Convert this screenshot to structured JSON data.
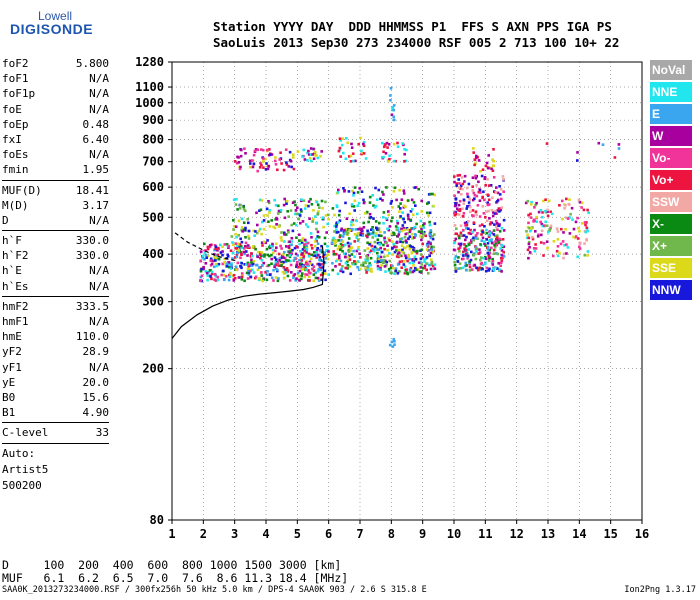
{
  "logo": {
    "line1": "Lowell",
    "line2": "DIGISONDE"
  },
  "header": {
    "line1": "Station YYYY DAY  DDD HHMMSS P1  FFS S AXN PPS IGA PS",
    "line2": "SaoLuis 2013 Sep30 273 234000 RSF 005 2 713 100 10+ 22"
  },
  "params": [
    {
      "name": "foF2",
      "value": "5.800"
    },
    {
      "name": "foF1",
      "value": "N/A"
    },
    {
      "name": "foF1p",
      "value": "N/A"
    },
    {
      "name": "foE",
      "value": "N/A"
    },
    {
      "name": "foEp",
      "value": "0.48"
    },
    {
      "name": "fxI",
      "value": "6.40"
    },
    {
      "name": "foEs",
      "value": "N/A"
    },
    {
      "name": "fmin",
      "value": "1.95"
    },
    {
      "divider": true
    },
    {
      "name": "MUF(D)",
      "value": "18.41"
    },
    {
      "name": "M(D)",
      "value": "3.17"
    },
    {
      "name": "D",
      "value": "N/A"
    },
    {
      "divider": true
    },
    {
      "name": "h`F",
      "value": "330.0"
    },
    {
      "name": "h`F2",
      "value": "330.0"
    },
    {
      "name": "h`E",
      "value": "N/A"
    },
    {
      "name": "h`Es",
      "value": "N/A"
    },
    {
      "divider": true
    },
    {
      "name": "hmF2",
      "value": "333.5"
    },
    {
      "name": "hmF1",
      "value": "N/A"
    },
    {
      "name": "hmE",
      "value": "110.0"
    },
    {
      "name": "yF2",
      "value": "28.9"
    },
    {
      "name": "yF1",
      "value": "N/A"
    },
    {
      "name": "yE",
      "value": "20.0"
    },
    {
      "name": "B0",
      "value": "15.6"
    },
    {
      "name": "B1",
      "value": "4.90"
    },
    {
      "divider": true
    },
    {
      "name": "C-level",
      "value": "33"
    },
    {
      "divider": true
    }
  ],
  "notes": [
    "Auto:",
    "Artist5",
    "500200"
  ],
  "legend": [
    {
      "label": "NoVal",
      "color": "#a8a8a8"
    },
    {
      "label": "NNE",
      "color": "#22e6ee"
    },
    {
      "label": "E",
      "color": "#3aa6f0"
    },
    {
      "label": "W",
      "color": "#a8009e"
    },
    {
      "label": "Vo-",
      "color": "#f0349a"
    },
    {
      "label": "Vo+",
      "color": "#ee1440"
    },
    {
      "label": "SSW",
      "color": "#f2a8a4"
    },
    {
      "label": "X-",
      "color": "#0a8a12"
    },
    {
      "label": "X+",
      "color": "#70b84c"
    },
    {
      "label": "SSE",
      "color": "#dcd81a"
    },
    {
      "label": "NNW",
      "color": "#1818dc"
    }
  ],
  "muf_table": {
    "row1": "D     100  200  400  600  800 1000 1500 3000 [km]",
    "row2": "MUF   6.1  6.2  6.5  7.0  7.6  8.6 11.3 18.4 [MHz]"
  },
  "footer": {
    "left": "SAA0K_2013273234000.RSF / 300fx256h 50 kHz 5.0 km / DPS-4 SAA0K 903 / 2.6 S 315.8 E",
    "right": "Ion2Png 1.3.17"
  },
  "chart_data": {
    "type": "scatter",
    "title": "",
    "xlabel": "",
    "ylabel": "",
    "xlim": [
      1,
      16
    ],
    "ylim": [
      80,
      1280
    ],
    "x_ticks": [
      1,
      2,
      3,
      4,
      5,
      6,
      7,
      8,
      9,
      10,
      11,
      12,
      13,
      14,
      15,
      16
    ],
    "y_ticks": [
      80,
      200,
      300,
      400,
      500,
      600,
      700,
      800,
      900,
      1000,
      1100,
      1280
    ],
    "y_scale": "log",
    "grid": "dotted",
    "legend_position": "right",
    "clusters": [
      {
        "x": [
          1.9,
          6.0
        ],
        "y": [
          340,
          430
        ],
        "n": 520,
        "colors": [
          "#ee1440",
          "#f0349a",
          "#a8009e",
          "#1818dc",
          "#0a8a12",
          "#dcd81a",
          "#22e6ee",
          "#3aa6f0"
        ]
      },
      {
        "x": [
          2.9,
          6.0
        ],
        "y": [
          430,
          560
        ],
        "n": 180,
        "colors": [
          "#dcd81a",
          "#0a8a12",
          "#70b84c",
          "#a8009e",
          "#22e6ee",
          "#1818dc"
        ]
      },
      {
        "x": [
          6.1,
          9.4
        ],
        "y": [
          355,
          470
        ],
        "n": 460,
        "colors": [
          "#1818dc",
          "#22e6ee",
          "#0a8a12",
          "#ee1440",
          "#a8009e",
          "#3aa6f0",
          "#70b84c",
          "#dcd81a"
        ]
      },
      {
        "x": [
          6.1,
          9.4
        ],
        "y": [
          470,
          600
        ],
        "n": 150,
        "colors": [
          "#1818dc",
          "#a8009e",
          "#22e6ee",
          "#dcd81a",
          "#0a8a12"
        ]
      },
      {
        "x": [
          10.0,
          11.6
        ],
        "y": [
          360,
          470
        ],
        "n": 230,
        "colors": [
          "#0a8a12",
          "#70b84c",
          "#22e6ee",
          "#1818dc",
          "#ee1440",
          "#f0349a",
          "#a8009e",
          "#3aa6f0"
        ]
      },
      {
        "x": [
          10.0,
          11.6
        ],
        "y": [
          470,
          650
        ],
        "n": 160,
        "colors": [
          "#a8009e",
          "#f0349a",
          "#ee1440",
          "#f2a8a4",
          "#1818dc"
        ]
      },
      {
        "x": [
          12.3,
          14.3
        ],
        "y": [
          390,
          560
        ],
        "n": 150,
        "colors": [
          "#ee1440",
          "#f0349a",
          "#dcd81a",
          "#70b84c",
          "#a8009e",
          "#f2a8a4",
          "#22e6ee"
        ]
      },
      {
        "x": [
          3.0,
          4.9
        ],
        "y": [
          660,
          760
        ],
        "n": 70,
        "colors": [
          "#a8009e",
          "#ee1440",
          "#1818dc",
          "#dcd81a",
          "#f0349a"
        ]
      },
      {
        "x": [
          5.0,
          5.8
        ],
        "y": [
          700,
          760
        ],
        "n": 25,
        "colors": [
          "#22e6ee",
          "#dcd81a",
          "#a8009e"
        ]
      },
      {
        "x": [
          6.3,
          7.2
        ],
        "y": [
          700,
          810
        ],
        "n": 30,
        "colors": [
          "#dcd81a",
          "#ee1440",
          "#a8009e",
          "#22e6ee"
        ]
      },
      {
        "x": [
          7.7,
          8.5
        ],
        "y": [
          700,
          790
        ],
        "n": 30,
        "colors": [
          "#22e6ee",
          "#dcd81a",
          "#a8009e",
          "#ee1440"
        ]
      },
      {
        "x": [
          10.5,
          11.3
        ],
        "y": [
          660,
          760
        ],
        "n": 25,
        "colors": [
          "#a8009e",
          "#dcd81a",
          "#ee1440"
        ]
      },
      {
        "x": [
          7.9,
          8.1
        ],
        "y": [
          900,
          1100
        ],
        "n": 12,
        "colors": [
          "#3aa6f0",
          "#a8009e",
          "#22e6ee"
        ]
      },
      {
        "x": [
          7.95,
          8.1
        ],
        "y": [
          220,
          240
        ],
        "n": 6,
        "colors": [
          "#3aa6f0"
        ]
      },
      {
        "x": [
          12.9,
          15.5
        ],
        "y": [
          700,
          790
        ],
        "n": 8,
        "colors": [
          "#ee1440",
          "#1818dc",
          "#a8009e",
          "#3aa6f0"
        ]
      }
    ],
    "trace_solid": {
      "x": [
        1.0,
        1.3,
        1.8,
        2.3,
        2.8,
        3.3,
        3.8,
        4.3,
        4.8,
        5.2,
        5.5,
        5.8,
        5.85,
        5.8
      ],
      "y": [
        240,
        258,
        277,
        292,
        303,
        310,
        314,
        317,
        320,
        323,
        327,
        333,
        380,
        420
      ]
    },
    "trace_dashed": {
      "x": [
        1.1,
        1.5,
        2.0,
        2.4,
        2.8,
        3.1
      ],
      "y": [
        455,
        430,
        410,
        396,
        388,
        384
      ]
    }
  }
}
